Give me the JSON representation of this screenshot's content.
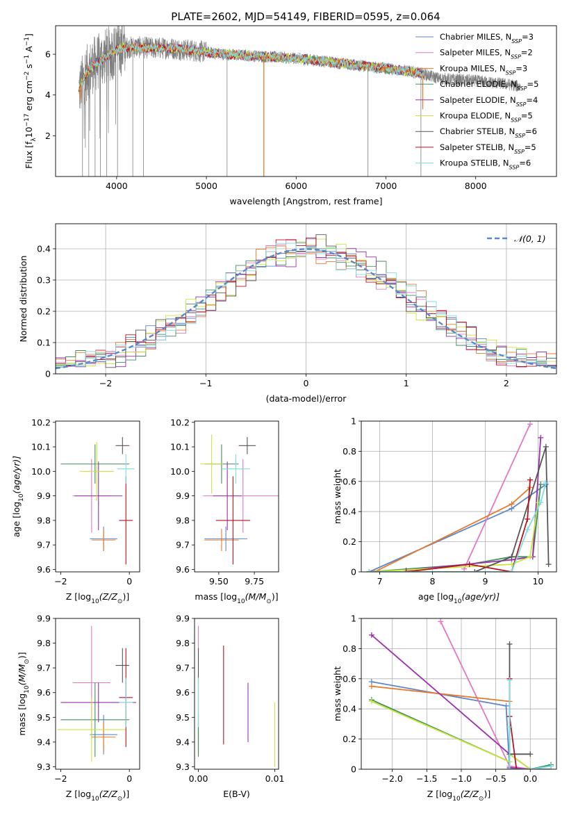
{
  "figure_title": "PLATE=2602, MJD=54149, FIBERID=0595, z=0.064",
  "model_names": [
    "Chabrier MILES",
    "Salpeter MILES",
    "Kroupa MILES",
    "Chabrier ELODIE",
    "Salpeter ELODIE",
    "Kroupa ELODIE",
    "Chabrier STELIB",
    "Salpeter STELIB",
    "Kroupa STELIB"
  ],
  "model_nssp": [
    3,
    2,
    3,
    5,
    4,
    5,
    6,
    5,
    6
  ],
  "model_colors": [
    "#5b86c9",
    "#e377c2",
    "#e8792b",
    "#3f8f5f",
    "#9b2fae",
    "#c8e63c",
    "#555555",
    "#b5121b",
    "#7fdde0"
  ],
  "data_color": "#808080",
  "chart_data": [
    {
      "id": "spectrum",
      "type": "line",
      "title": "PLATE=2602, MJD=54149, FIBERID=0595, z=0.064",
      "xlabel": "wavelength [Angstrom, rest frame]",
      "ylabel_parts": [
        "Flux [f",
        "λ",
        "10",
        "−17",
        " erg cm",
        "−2",
        " s",
        "−1",
        " A",
        "−1",
        "]"
      ],
      "xlim": [
        3320,
        8900
      ],
      "ylim": [
        0,
        7.4
      ],
      "xticks": [
        4000,
        5000,
        6000,
        7000,
        8000
      ],
      "yticks": [
        2,
        4,
        6
      ],
      "legend_position": "upper right",
      "legend": [
        "Chabrier MILES, N_SSP=3",
        "Salpeter MILES, N_SSP=2",
        "Kroupa MILES, N_SSP=3",
        "Chabrier ELODIE, N_SSP=5",
        "Salpeter ELODIE, N_SSP=4",
        "Kroupa ELODIE, N_SSP=5",
        "Chabrier STELIB, N_SSP=6",
        "Salpeter STELIB, N_SSP=5",
        "Kroupa STELIB, N_SSP=6"
      ],
      "continuum": {
        "x": [
          3580,
          3650,
          3750,
          3850,
          3950,
          4050,
          4200,
          4400,
          4600,
          4800,
          5000,
          5200,
          5400,
          5600,
          5800,
          6000,
          6200,
          6400,
          6600,
          6800,
          7000,
          7200,
          7400,
          7600,
          7800,
          8000,
          8200,
          8400,
          8500
        ],
        "y": [
          4.2,
          5.0,
          5.5,
          5.8,
          6.1,
          6.3,
          6.35,
          6.3,
          6.3,
          6.2,
          6.1,
          6.0,
          5.95,
          5.9,
          5.85,
          5.8,
          5.7,
          5.6,
          5.5,
          5.4,
          5.3,
          5.2,
          5.05,
          4.8,
          4.75,
          4.7,
          4.6,
          4.5,
          4.4
        ]
      },
      "data_deep_dips": [
        3620,
        3690,
        3760,
        3820,
        3890,
        4010,
        4180,
        4300,
        5230,
        5640,
        6800,
        7390
      ]
    },
    {
      "id": "residuals",
      "type": "histogram",
      "xlabel": "(data-model)/error",
      "ylabel": "Normed distribution",
      "xlim": [
        -2.5,
        2.5
      ],
      "ylim": [
        0,
        0.48
      ],
      "xticks": [
        -2,
        -1,
        0,
        1,
        2
      ],
      "yticks": [
        0.0,
        0.1,
        0.2,
        0.3,
        0.4
      ],
      "grid": true,
      "bin_edges_from": -2.5,
      "bin_width": 0.1,
      "reference_curve": "N(0,1)",
      "legend": [
        "𝒩(0, 1)"
      ],
      "legend_position": "upper right",
      "reference_color": "#5b86c9",
      "model_offset_scale": 0.06
    },
    {
      "id": "age_vs_Z",
      "type": "errorbar",
      "xlabel_parts": [
        "Z [log",
        "10",
        "(Z/Z",
        "⊙",
        ")]"
      ],
      "ylabel_parts": [
        "age  [log",
        "10",
        "(age/yr)]"
      ],
      "xlim": [
        -2.15,
        0.3
      ],
      "ylim": [
        9.59,
        10.205
      ],
      "xticks": [
        -2,
        0
      ],
      "yticks": [
        9.6,
        9.7,
        9.8,
        9.9,
        10.0,
        10.1,
        10.2
      ],
      "ytick_labels": [
        "9.6",
        "9.7",
        "9.8",
        "9.9",
        "10.0",
        "10.1",
        "10.2"
      ],
      "points": [
        {
          "x": -0.75,
          "y": 9.725,
          "xerr": 0.4,
          "yerr": 0.05
        },
        {
          "x": -1.1,
          "y": 9.9,
          "xerr": 0.55,
          "yerr": 0.15
        },
        {
          "x": -0.75,
          "y": 9.72,
          "xerr": 0.35,
          "yerr": 0.045
        },
        {
          "x": -1.0,
          "y": 10.03,
          "xerr": 1.0,
          "yerr": 0.08
        },
        {
          "x": -0.9,
          "y": 9.9,
          "xerr": 0.7,
          "yerr": 0.14
        },
        {
          "x": -0.95,
          "y": 10.0,
          "xerr": 0.5,
          "yerr": 0.12
        },
        {
          "x": -0.2,
          "y": 10.105,
          "xerr": 0.2,
          "yerr": 0.035
        },
        {
          "x": -0.1,
          "y": 9.8,
          "xerr": 0.2,
          "yerr": 0.18
        },
        {
          "x": -0.1,
          "y": 10.01,
          "xerr": 0.25,
          "yerr": 0.06
        }
      ]
    },
    {
      "id": "age_vs_mass",
      "type": "errorbar",
      "xlabel_parts": [
        "mass [log",
        "10",
        "(M/M",
        "⊙",
        ")]"
      ],
      "ylabel_parts": [],
      "xlim": [
        9.33,
        9.92
      ],
      "ylim": [
        9.59,
        10.205
      ],
      "xticks": [
        9.5,
        9.75
      ],
      "xtick_labels": [
        "9.50",
        "9.75"
      ],
      "yticks": [
        9.6,
        9.7,
        9.8,
        9.9,
        10.0,
        10.1,
        10.2
      ],
      "ytick_labels": [
        "9.6",
        "9.7",
        "9.8",
        "9.9",
        "10.0",
        "10.1",
        "10.2"
      ],
      "points": [
        {
          "x": 9.55,
          "y": 9.725,
          "xerr": 0.15,
          "yerr": 0.05
        },
        {
          "x": 9.67,
          "y": 9.9,
          "xerr": 0.28,
          "yerr": 0.15
        },
        {
          "x": 9.52,
          "y": 9.72,
          "xerr": 0.12,
          "yerr": 0.045
        },
        {
          "x": 9.52,
          "y": 10.03,
          "xerr": 0.12,
          "yerr": 0.08
        },
        {
          "x": 9.56,
          "y": 9.9,
          "xerr": 0.1,
          "yerr": 0.14
        },
        {
          "x": 9.45,
          "y": 10.03,
          "xerr": 0.08,
          "yerr": 0.12
        },
        {
          "x": 9.7,
          "y": 10.105,
          "xerr": 0.06,
          "yerr": 0.035
        },
        {
          "x": 9.6,
          "y": 9.8,
          "xerr": 0.12,
          "yerr": 0.18
        },
        {
          "x": 9.62,
          "y": 10.01,
          "xerr": 0.1,
          "yerr": 0.06
        }
      ]
    },
    {
      "id": "weight_vs_age",
      "type": "line",
      "xlabel_parts": [
        "age  [log",
        "10",
        "(age/yr)]"
      ],
      "ylabel": "mass weight",
      "xlim": [
        6.65,
        10.35
      ],
      "ylim": [
        0,
        1.0
      ],
      "xticks": [
        7,
        8,
        9,
        10
      ],
      "yticks": [
        0.0,
        0.2,
        0.4,
        0.6,
        0.8,
        1.0
      ],
      "grid": true,
      "series": [
        {
          "x": [
            6.8,
            9.5,
            10.15
          ],
          "y": [
            0.0,
            0.42,
            0.58
          ]
        },
        {
          "x": [
            8.6,
            9.85
          ],
          "y": [
            0.02,
            0.98
          ]
        },
        {
          "x": [
            6.9,
            9.5,
            9.85
          ],
          "y": [
            0.0,
            0.45,
            0.56
          ]
        },
        {
          "x": [
            6.8,
            8.7,
            9.5,
            9.9,
            10.05
          ],
          "y": [
            0.0,
            0.05,
            0.1,
            0.1,
            0.58
          ]
        },
        {
          "x": [
            7.5,
            9.5,
            9.9,
            10.05
          ],
          "y": [
            0.01,
            0.08,
            0.1,
            0.89
          ]
        },
        {
          "x": [
            6.8,
            9.5,
            9.85,
            10.0
          ],
          "y": [
            0.0,
            0.05,
            0.1,
            0.46
          ]
        },
        {
          "x": [
            6.8,
            8.8,
            9.5,
            10.15,
            10.2
          ],
          "y": [
            0.0,
            0.0,
            0.1,
            0.83,
            0.05
          ]
        },
        {
          "x": [
            7.5,
            8.7,
            9.5,
            9.8,
            9.85
          ],
          "y": [
            0.0,
            0.05,
            0.0,
            0.35,
            0.61
          ]
        },
        {
          "x": [
            6.8,
            9.5,
            9.8,
            10.05,
            10.15
          ],
          "y": [
            0.0,
            0.0,
            0.28,
            0.46,
            0.59
          ]
        }
      ]
    },
    {
      "id": "mass_vs_Z",
      "type": "errorbar",
      "xlabel_parts": [
        "Z [log",
        "10",
        "(Z/Z",
        "⊙",
        ")]"
      ],
      "ylabel_parts": [
        "mass [log",
        "10",
        "(M/M",
        "⊙",
        ")]"
      ],
      "xlim": [
        -2.15,
        0.3
      ],
      "ylim": [
        9.29,
        9.9
      ],
      "xticks": [
        -2,
        0
      ],
      "yticks": [
        9.3,
        9.4,
        9.5,
        9.6,
        9.7,
        9.8,
        9.9
      ],
      "ytick_labels": [
        "9.3",
        "9.4",
        "9.5",
        "9.6",
        "9.7",
        "9.8",
        "9.9"
      ],
      "points": [
        {
          "x": -0.75,
          "y": 9.43,
          "xerr": 0.4,
          "yerr": 0.08
        },
        {
          "x": -1.1,
          "y": 9.64,
          "xerr": 0.55,
          "yerr": 0.23
        },
        {
          "x": -0.75,
          "y": 9.42,
          "xerr": 0.35,
          "yerr": 0.06
        },
        {
          "x": -1.0,
          "y": 9.49,
          "xerr": 1.0,
          "yerr": 0.15
        },
        {
          "x": -0.9,
          "y": 9.56,
          "xerr": 1.1,
          "yerr": 0.08
        },
        {
          "x": -1.1,
          "y": 9.45,
          "xerr": 1.0,
          "yerr": 0.13
        },
        {
          "x": -0.2,
          "y": 9.71,
          "xerr": 0.2,
          "yerr": 0.07
        },
        {
          "x": -0.1,
          "y": 9.58,
          "xerr": 0.2,
          "yerr": 0.2
        },
        {
          "x": -0.1,
          "y": 9.56,
          "xerr": 0.2,
          "yerr": 0.1
        }
      ]
    },
    {
      "id": "mass_vs_ebv",
      "type": "errorbar",
      "xlabel": "E(B-V)",
      "ylabel_parts": [],
      "xlim": [
        -0.0005,
        0.0105
      ],
      "ylim": [
        9.29,
        9.9
      ],
      "xticks": [
        0.0,
        0.01
      ],
      "xtick_labels": [
        "0.00",
        "0.01"
      ],
      "yticks": [
        9.3,
        9.4,
        9.5,
        9.6,
        9.7,
        9.8,
        9.9
      ],
      "ytick_labels": [
        "9.3",
        "9.4",
        "9.5",
        "9.6",
        "9.7",
        "9.8",
        "9.9"
      ],
      "points": [
        {
          "x": 0.0,
          "y": 9.43,
          "xerr": 0,
          "yerr": 0.08
        },
        {
          "x": 0.0,
          "y": 9.64,
          "xerr": 0,
          "yerr": 0.23
        },
        {
          "x": 0.0,
          "y": 9.42,
          "xerr": 0,
          "yerr": 0.06
        },
        {
          "x": 0.0,
          "y": 9.49,
          "xerr": 0,
          "yerr": 0.15
        },
        {
          "x": 0.0065,
          "y": 9.52,
          "xerr": 0,
          "yerr": 0.12
        },
        {
          "x": 0.01,
          "y": 9.43,
          "xerr": 0,
          "yerr": 0.13
        },
        {
          "x": 0.0,
          "y": 9.71,
          "xerr": 0,
          "yerr": 0.07
        },
        {
          "x": 0.0033,
          "y": 9.59,
          "xerr": 0,
          "yerr": 0.2
        },
        {
          "x": 0.0,
          "y": 9.56,
          "xerr": 0,
          "yerr": 0.1
        }
      ]
    },
    {
      "id": "weight_vs_Z",
      "type": "line",
      "xlabel_parts": [
        "Z [log",
        "10",
        "(Z/Z",
        "⊙",
        ")]"
      ],
      "ylabel": "mass weight",
      "xlim": [
        -2.45,
        0.38
      ],
      "ylim": [
        0,
        1.0
      ],
      "xticks": [
        -2.0,
        -1.5,
        -1.0,
        -0.5,
        0.0
      ],
      "xtick_labels": [
        "−2.0",
        "−1.5",
        "−1.0",
        "−0.5",
        "0.0"
      ],
      "yticks": [
        0.0,
        0.2,
        0.4,
        0.6,
        0.8,
        1.0
      ],
      "grid": true,
      "series": [
        {
          "x": [
            -2.3,
            -0.35,
            -0.3,
            0.0,
            0.3
          ],
          "y": [
            0.58,
            0.42,
            0.0,
            0.0,
            0.0
          ]
        },
        {
          "x": [
            -1.3,
            -0.3,
            0.0
          ],
          "y": [
            0.98,
            0.02,
            0.0
          ]
        },
        {
          "x": [
            -2.3,
            -0.3,
            -0.3,
            0.0
          ],
          "y": [
            0.55,
            0.45,
            0.0,
            0.0
          ]
        },
        {
          "x": [
            -2.3,
            -0.3,
            -0.3,
            0.0,
            0.3
          ],
          "y": [
            0.46,
            0.05,
            0.1,
            0.0,
            0.03
          ]
        },
        {
          "x": [
            -2.3,
            -0.3,
            -0.3,
            0.0
          ],
          "y": [
            0.89,
            0.1,
            0.01,
            0.0
          ]
        },
        {
          "x": [
            -2.3,
            -0.3,
            -0.3,
            0.0
          ],
          "y": [
            0.45,
            0.05,
            0.1,
            0.0
          ]
        },
        {
          "x": [
            -0.3,
            -0.3,
            -0.3,
            0.0
          ],
          "y": [
            0.83,
            0.35,
            0.1,
            0.1
          ]
        },
        {
          "x": [
            -0.3,
            -0.3,
            -0.2,
            0.0
          ],
          "y": [
            0.6,
            0.35,
            0.0,
            0.0
          ]
        },
        {
          "x": [
            -0.3,
            -0.3,
            -0.3,
            0.0,
            0.3
          ],
          "y": [
            0.59,
            0.28,
            0.0,
            0.0,
            0.02
          ]
        }
      ]
    }
  ]
}
